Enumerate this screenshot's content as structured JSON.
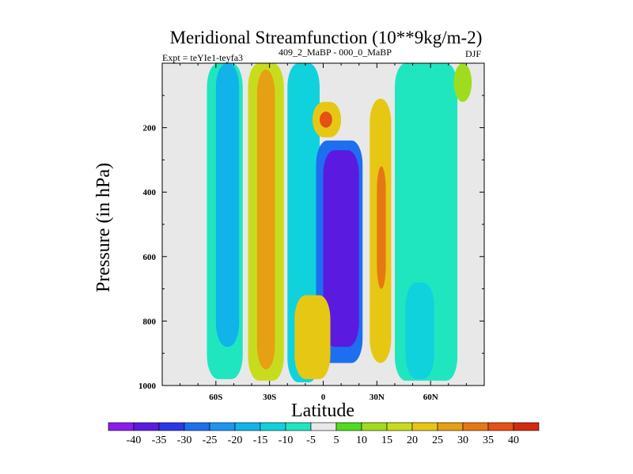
{
  "chart_data": {
    "type": "contour",
    "title": "Meridional Streamfunction (10**9kg/m-2)",
    "expt_label": "Expt = teYIe1-teyfa3",
    "period_label": "409_2_MaBP - 000_0_MaBP",
    "season_label": "DJF",
    "xlabel": "Latitude",
    "ylabel": "Pressure (in hPa)",
    "xlim": [
      -90,
      90
    ],
    "ylim": [
      1000,
      0
    ],
    "x_ticks": [
      -60,
      -30,
      0,
      30,
      60
    ],
    "x_tick_labels": [
      "60S",
      "30S",
      "0",
      "30N",
      "60N"
    ],
    "y_ticks": [
      200,
      400,
      600,
      800,
      1000
    ],
    "y_tick_labels": [
      "200",
      "400",
      "600",
      "800",
      "1000"
    ],
    "colorbar": {
      "levels": [
        -40,
        -35,
        -30,
        -25,
        -20,
        -15,
        -10,
        -5,
        5,
        10,
        15,
        20,
        25,
        30,
        35,
        40
      ],
      "labels": [
        "-40",
        "-35",
        "-30",
        "-25",
        "-20",
        "-15",
        "-10",
        "-5",
        "5",
        "10",
        "15",
        "20",
        "25",
        "30",
        "35",
        "40"
      ],
      "colors": [
        "#8b1cf0",
        "#5a1ae0",
        "#2d37e8",
        "#1e6ef0",
        "#1e96f0",
        "#10b4e8",
        "#10d2dc",
        "#20e6c0",
        "#e8e8e8",
        "#50dc1e",
        "#a0dc1e",
        "#c8dc1e",
        "#e6c814",
        "#e6a014",
        "#e67814",
        "#e65014",
        "#d22a10"
      ]
    },
    "contours": [
      {
        "name": "contour-sh-highlat-cyan",
        "level": -10,
        "lat_range": [
          -65,
          -45
        ],
        "p_range": [
          0,
          980
        ]
      },
      {
        "name": "contour-sh-highlat-blue",
        "level": -20,
        "lat_range": [
          -60,
          -47
        ],
        "p_range": [
          0,
          880
        ]
      },
      {
        "name": "contour-sh-midlat-positive",
        "level": 15,
        "lat_range": [
          -42,
          -22
        ],
        "p_range": [
          0,
          985
        ]
      },
      {
        "name": "contour-sh-midlat-max",
        "level": 25,
        "lat_range": [
          -37,
          -27
        ],
        "p_range": [
          20,
          950
        ]
      },
      {
        "name": "contour-sh-subtrop-negative",
        "level": -15,
        "lat_range": [
          -20,
          -2
        ],
        "p_range": [
          0,
          990
        ]
      },
      {
        "name": "contour-upper-positive-cell",
        "level": 20,
        "lat_range": [
          -6,
          10
        ],
        "p_range": [
          120,
          230
        ]
      },
      {
        "name": "contour-upper-positive-max",
        "level": 35,
        "lat_range": [
          -2,
          5
        ],
        "p_range": [
          150,
          200
        ]
      },
      {
        "name": "contour-tropical-negative-cell",
        "level": -30,
        "lat_range": [
          -4,
          22
        ],
        "p_range": [
          240,
          930
        ]
      },
      {
        "name": "contour-tropical-negative-min",
        "level": -40,
        "lat_range": [
          0,
          20
        ],
        "p_range": [
          270,
          880
        ]
      },
      {
        "name": "contour-sh-lowlevel-positive",
        "level": 20,
        "lat_range": [
          -16,
          4
        ],
        "p_range": [
          720,
          980
        ]
      },
      {
        "name": "contour-nh-subtrop-positive",
        "level": 20,
        "lat_range": [
          26,
          38
        ],
        "p_range": [
          110,
          930
        ]
      },
      {
        "name": "contour-nh-subtrop-max",
        "level": 30,
        "lat_range": [
          30,
          35
        ],
        "p_range": [
          320,
          700
        ]
      },
      {
        "name": "contour-nh-midlat-negative",
        "level": -10,
        "lat_range": [
          40,
          75
        ],
        "p_range": [
          0,
          985
        ]
      },
      {
        "name": "contour-nh-lowlevel-negative",
        "level": -15,
        "lat_range": [
          46,
          62
        ],
        "p_range": [
          680,
          980
        ]
      },
      {
        "name": "contour-nh-highlat-positive",
        "level": 10,
        "lat_range": [
          73,
          83
        ],
        "p_range": [
          0,
          120
        ]
      }
    ]
  }
}
